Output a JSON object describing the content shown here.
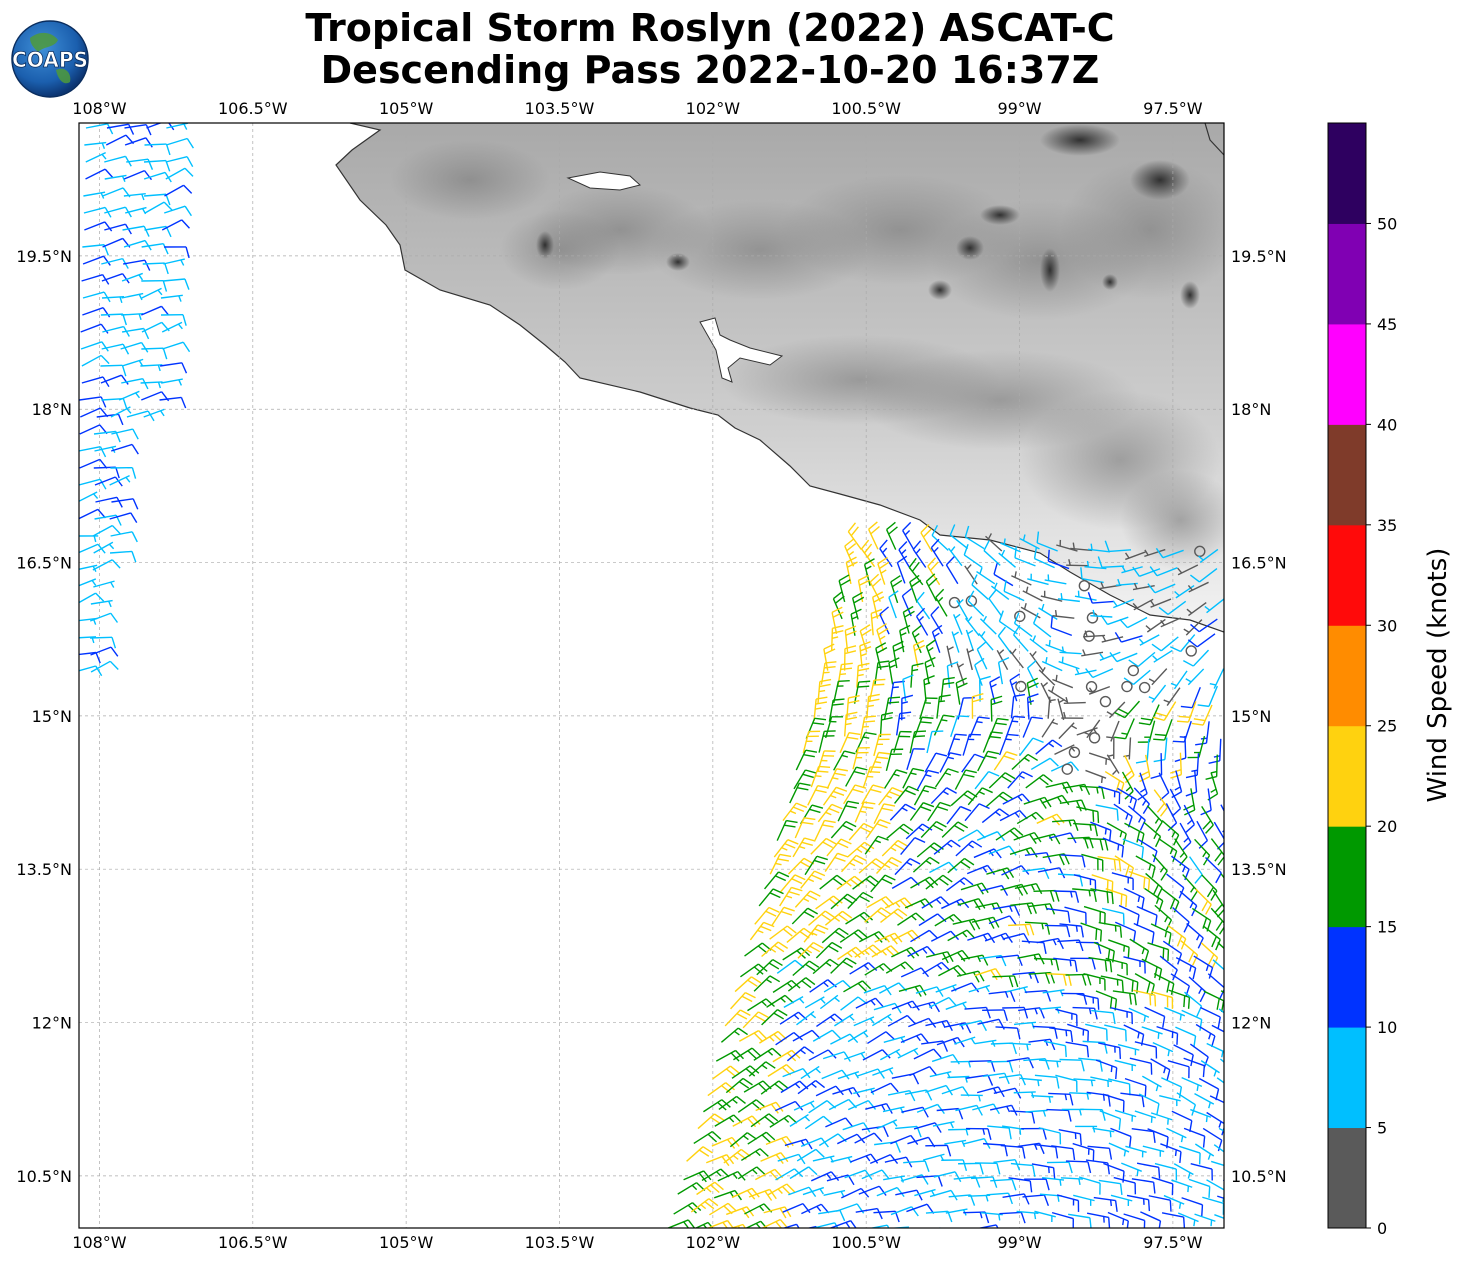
{
  "title": {
    "line1": "Tropical Storm Roslyn (2022) ASCAT-C",
    "line2": "Descending Pass 2022-10-20 16:37Z"
  },
  "logo": {
    "text": "COAPS",
    "icon": "globe-icon"
  },
  "map": {
    "lon_range": [
      -108.2,
      -97.0
    ],
    "lat_range": [
      9.99,
      20.8
    ],
    "lon_ticks": [
      -108,
      -106.5,
      -105,
      -103.5,
      -102,
      -100.5,
      -99,
      -97.5
    ],
    "lon_tick_labels": [
      "108°W",
      "106.5°W",
      "105°W",
      "103.5°W",
      "102°W",
      "100.5°W",
      "99°W",
      "97.5°W"
    ],
    "lat_ticks": [
      10.5,
      12,
      13.5,
      15,
      16.5,
      18,
      19.5
    ],
    "lat_tick_labels": [
      "10.5°N",
      "12°N",
      "13.5°N",
      "15°N",
      "16.5°N",
      "18°N",
      "19.5°N"
    ],
    "gridlines": "dashed",
    "land_shading": "grayscale terrain"
  },
  "colorbar": {
    "title": "Wind Speed (knots)",
    "ticks": [
      "0",
      "5",
      "10",
      "15",
      "20",
      "25",
      "30",
      "35",
      "40",
      "45",
      "50"
    ],
    "bins": [
      {
        "from": 0,
        "to": 5,
        "color": "#5a5a5a"
      },
      {
        "from": 5,
        "to": 10,
        "color": "#00bfff"
      },
      {
        "from": 10,
        "to": 15,
        "color": "#0033ff"
      },
      {
        "from": 15,
        "to": 20,
        "color": "#009900"
      },
      {
        "from": 20,
        "to": 25,
        "color": "#ffd20f"
      },
      {
        "from": 25,
        "to": 30,
        "color": "#ff8c00"
      },
      {
        "from": 30,
        "to": 35,
        "color": "#ff0a0a"
      },
      {
        "from": 35,
        "to": 40,
        "color": "#7f3b2a"
      },
      {
        "from": 40,
        "to": 45,
        "color": "#ff00ff"
      },
      {
        "from": 45,
        "to": 50,
        "color": "#8000b3"
      },
      {
        "from": 50,
        "to": 55,
        "color": "#2e0060"
      }
    ]
  }
}
